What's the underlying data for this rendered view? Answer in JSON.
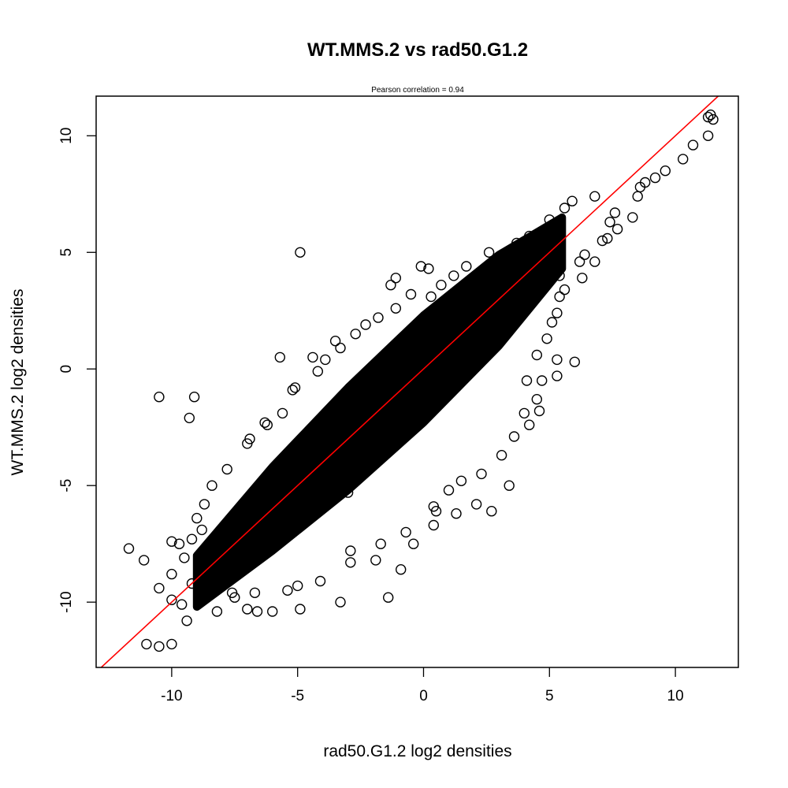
{
  "chart_data": {
    "type": "scatter",
    "title": "WT.MMS.2 vs rad50.G1.2",
    "subtitle": "Pearson correlation =  0.94",
    "xlabel": "rad50.G1.2 log2 densities",
    "ylabel": "WT.MMS.2 log2 densities",
    "xlim": [
      -13,
      12.5
    ],
    "ylim": [
      -12.8,
      11.7
    ],
    "xticks": [
      -10,
      -5,
      0,
      5,
      10
    ],
    "yticks": [
      -10,
      -5,
      0,
      5,
      10
    ],
    "grid": false,
    "point_style": "open-circle",
    "point_color": "#000000",
    "line_color": "#ff0000",
    "fit_line": {
      "slope": 1.0,
      "intercept": 0.0
    },
    "series": [
      {
        "points": [
          [
            -11.7,
            -7.7
          ],
          [
            -11.1,
            -8.2
          ],
          [
            -11.0,
            -11.8
          ],
          [
            -10.5,
            -11.9
          ],
          [
            -10.0,
            -11.8
          ],
          [
            -10.5,
            -9.4
          ],
          [
            -10.5,
            -1.2
          ],
          [
            -9.1,
            -1.2
          ],
          [
            -9.3,
            -2.1
          ],
          [
            -10.0,
            -7.4
          ],
          [
            -9.7,
            -7.5
          ],
          [
            -9.6,
            -10.1
          ],
          [
            -9.4,
            -10.8
          ],
          [
            -10.0,
            -9.9
          ],
          [
            -10.0,
            -8.8
          ],
          [
            -8.6,
            -9.3
          ],
          [
            -8.2,
            -10.4
          ],
          [
            -7.0,
            -10.3
          ],
          [
            -6.6,
            -10.4
          ],
          [
            -6.0,
            -10.4
          ],
          [
            -4.9,
            -10.3
          ],
          [
            -3.3,
            -10.0
          ],
          [
            -5.0,
            -9.3
          ],
          [
            -6.9,
            -3.0
          ],
          [
            -7.5,
            -9.8
          ],
          [
            -6.3,
            -2.3
          ],
          [
            -5.6,
            -1.9
          ],
          [
            -5.1,
            -0.8
          ],
          [
            -5.7,
            0.5
          ],
          [
            -4.4,
            0.5
          ],
          [
            -3.9,
            0.4
          ],
          [
            -3.3,
            0.9
          ],
          [
            -2.3,
            1.9
          ],
          [
            -1.3,
            3.6
          ],
          [
            -1.1,
            3.9
          ],
          [
            -0.1,
            4.4
          ],
          [
            0.2,
            4.3
          ],
          [
            0.3,
            3.1
          ],
          [
            0.4,
            -6.7
          ],
          [
            1.3,
            -6.2
          ],
          [
            -1.7,
            -7.5
          ],
          [
            -2.9,
            -7.8
          ],
          [
            -1.4,
            -9.8
          ],
          [
            -0.9,
            -8.6
          ],
          [
            -0.4,
            -7.5
          ],
          [
            0.4,
            -5.9
          ],
          [
            1.5,
            -4.8
          ],
          [
            2.1,
            -5.8
          ],
          [
            2.7,
            -6.1
          ],
          [
            3.4,
            -5.0
          ],
          [
            4.2,
            -2.4
          ],
          [
            4.6,
            -1.8
          ],
          [
            4.5,
            -1.3
          ],
          [
            4.7,
            -0.5
          ],
          [
            5.3,
            -0.3
          ],
          [
            5.3,
            0.4
          ],
          [
            6.0,
            0.3
          ],
          [
            5.3,
            2.4
          ],
          [
            5.4,
            3.1
          ],
          [
            5.4,
            4.0
          ],
          [
            6.2,
            4.6
          ],
          [
            6.4,
            4.9
          ],
          [
            7.3,
            5.6
          ],
          [
            7.7,
            6.0
          ],
          [
            7.6,
            6.7
          ],
          [
            8.3,
            6.5
          ],
          [
            8.5,
            7.4
          ],
          [
            8.6,
            7.8
          ],
          [
            8.8,
            8.0
          ],
          [
            9.2,
            8.2
          ],
          [
            9.6,
            8.5
          ],
          [
            10.3,
            9.0
          ],
          [
            10.7,
            9.6
          ],
          [
            11.3,
            10.0
          ],
          [
            11.4,
            10.9
          ],
          [
            11.5,
            10.7
          ],
          [
            11.3,
            10.8
          ],
          [
            6.8,
            7.4
          ],
          [
            5.9,
            7.2
          ],
          [
            5.6,
            6.9
          ],
          [
            5.0,
            6.4
          ],
          [
            4.2,
            5.7
          ],
          [
            3.7,
            5.4
          ],
          [
            2.6,
            5.0
          ],
          [
            1.7,
            4.4
          ],
          [
            1.2,
            4.0
          ],
          [
            0.7,
            3.6
          ],
          [
            -0.5,
            3.2
          ],
          [
            -1.1,
            2.6
          ],
          [
            -1.8,
            2.2
          ],
          [
            -2.7,
            1.5
          ],
          [
            -3.5,
            1.2
          ],
          [
            -4.2,
            -0.1
          ],
          [
            -5.2,
            -0.9
          ],
          [
            -6.2,
            -2.4
          ],
          [
            -7.0,
            -3.2
          ],
          [
            -7.8,
            -4.3
          ],
          [
            -8.4,
            -5.0
          ],
          [
            -8.7,
            -5.8
          ],
          [
            -9.0,
            -6.4
          ],
          [
            -8.8,
            -6.9
          ],
          [
            -9.2,
            -7.3
          ],
          [
            -9.5,
            -8.1
          ],
          [
            -9.2,
            -9.2
          ],
          [
            -8.9,
            -9.8
          ],
          [
            -7.6,
            -9.6
          ],
          [
            -6.7,
            -9.6
          ],
          [
            -5.4,
            -9.5
          ],
          [
            -4.1,
            -9.1
          ],
          [
            -2.9,
            -8.3
          ],
          [
            -1.9,
            -8.2
          ],
          [
            -0.7,
            -7.0
          ],
          [
            0.5,
            -6.1
          ],
          [
            1.0,
            -5.2
          ],
          [
            2.3,
            -4.5
          ],
          [
            3.1,
            -3.7
          ],
          [
            3.6,
            -2.9
          ],
          [
            4.0,
            -1.9
          ],
          [
            4.1,
            -0.5
          ],
          [
            4.5,
            0.6
          ],
          [
            4.9,
            1.3
          ],
          [
            5.1,
            2.0
          ],
          [
            5.6,
            3.4
          ],
          [
            6.3,
            3.9
          ],
          [
            6.8,
            4.6
          ],
          [
            7.1,
            5.5
          ],
          [
            7.4,
            6.3
          ],
          [
            -4.9,
            5.0
          ],
          [
            -3.0,
            -5.3
          ],
          [
            -1.0,
            -3.0
          ],
          [
            1.1,
            1.0
          ],
          [
            2.0,
            2.0
          ],
          [
            -6.0,
            -6.0
          ],
          [
            -7.0,
            -7.2
          ],
          [
            3.0,
            3.1
          ]
        ]
      }
    ]
  }
}
